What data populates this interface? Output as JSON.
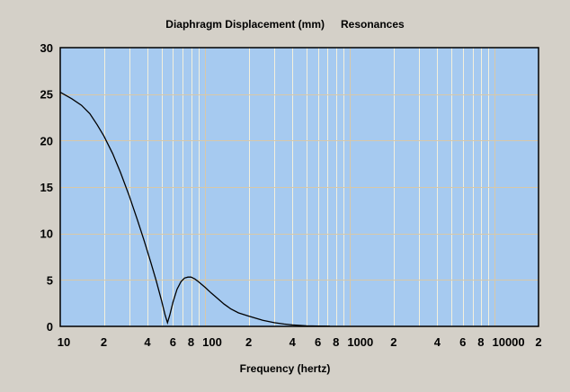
{
  "chart_data": {
    "type": "line",
    "title": "Diaphragm Displacement (mm)",
    "subtitle": "Resonances",
    "xlabel": "Frequency (hertz)",
    "ylabel": "",
    "xscale": "log",
    "xlim": [
      10,
      20000
    ],
    "ylim": [
      0,
      30
    ],
    "grid": true,
    "y_ticks": [
      "0",
      "5",
      "10",
      "15",
      "20",
      "25",
      "30"
    ],
    "x_tick_labels": [
      {
        "v": 10,
        "l": "10"
      },
      {
        "v": 20,
        "l": "2"
      },
      {
        "v": 40,
        "l": "4"
      },
      {
        "v": 60,
        "l": "6"
      },
      {
        "v": 80,
        "l": "8"
      },
      {
        "v": 100,
        "l": "100"
      },
      {
        "v": 200,
        "l": "2"
      },
      {
        "v": 400,
        "l": "4"
      },
      {
        "v": 600,
        "l": "6"
      },
      {
        "v": 800,
        "l": "8"
      },
      {
        "v": 1000,
        "l": "1000"
      },
      {
        "v": 2000,
        "l": "2"
      },
      {
        "v": 4000,
        "l": "4"
      },
      {
        "v": 6000,
        "l": "6"
      },
      {
        "v": 8000,
        "l": "8"
      },
      {
        "v": 10000,
        "l": "10000"
      },
      {
        "v": 20000,
        "l": "2"
      }
    ],
    "series": [
      {
        "name": "Displacement",
        "color": "#000000",
        "x": [
          10,
          12,
          14,
          16,
          18,
          20,
          23,
          26,
          30,
          34,
          38,
          42,
          46,
          50,
          53,
          55,
          57,
          60,
          64,
          68,
          72,
          76,
          80,
          85,
          90,
          100,
          110,
          120,
          135,
          150,
          170,
          200,
          250,
          300,
          350,
          400,
          500,
          600,
          726
        ],
        "y": [
          25.2,
          24.5,
          23.8,
          22.9,
          21.7,
          20.5,
          18.6,
          16.6,
          14.0,
          11.5,
          9.2,
          7.0,
          4.9,
          2.8,
          1.2,
          0.4,
          1.2,
          2.6,
          4.0,
          4.8,
          5.2,
          5.3,
          5.3,
          5.1,
          4.8,
          4.2,
          3.6,
          3.1,
          2.4,
          1.9,
          1.45,
          1.1,
          0.65,
          0.4,
          0.25,
          0.15,
          0.06,
          0.03,
          0.02
        ]
      }
    ],
    "colors": {
      "background": "#d4d0c8",
      "plot": "#a6caf0",
      "vgrid": "#f4f0dc",
      "hgrid": "#d8c8a8"
    }
  }
}
